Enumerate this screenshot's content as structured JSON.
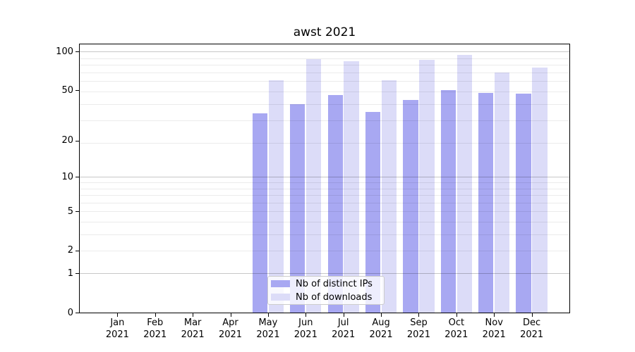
{
  "figure": {
    "background": "#ffffff"
  },
  "chart_data": {
    "type": "bar",
    "title": "awst 2021",
    "categories": [
      "Jan 2021",
      "Feb 2021",
      "Mar 2021",
      "Apr 2021",
      "May 2021",
      "Jun 2021",
      "Jul 2021",
      "Aug 2021",
      "Sep 2021",
      "Oct 2021",
      "Nov 2021",
      "Dec 2021"
    ],
    "series": [
      {
        "name": "Nb of distinct IPs",
        "color": "#a8a8f2",
        "values": [
          0,
          0,
          0,
          0,
          33,
          39,
          46,
          34,
          42,
          50,
          48,
          47
        ]
      },
      {
        "name": "Nb of downloads",
        "color": "#dcdcf8",
        "values": [
          0,
          0,
          0,
          0,
          60,
          88,
          84,
          60,
          86,
          95,
          69,
          75
        ]
      }
    ],
    "xlabel": "",
    "ylabel": "",
    "yscale": "log1p",
    "ylim": [
      0,
      114
    ],
    "yticks": [
      0,
      1,
      2,
      5,
      10,
      20,
      50,
      100
    ],
    "grid": true,
    "grid_major_values": [
      1,
      10,
      100
    ],
    "grid_minor_values": [
      2,
      3,
      4,
      5,
      6,
      7,
      8,
      9,
      19,
      29,
      39,
      49,
      59,
      69,
      79,
      89
    ],
    "legend_position": "lower center"
  },
  "colors": {
    "spine": "#000000",
    "grid_major": "rgba(0,0,0,0.22)",
    "grid_minor": "rgba(0,0,0,0.08)",
    "legend_border": "#cccccc",
    "legend_background": "rgba(255,255,255,0.8)"
  }
}
